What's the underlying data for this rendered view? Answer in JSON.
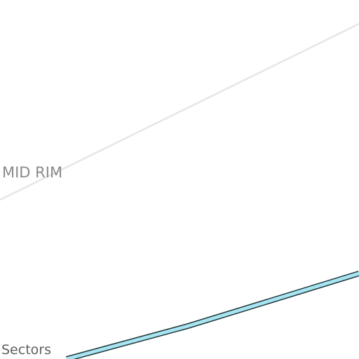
{
  "map": {
    "labels": {
      "district": "MID RIM",
      "road": "Sectors"
    },
    "colors": {
      "background": "#ffffff",
      "minor_road": "#e6e6e6",
      "highway_fill": "#a8e4f2",
      "highway_casing": "#1f3a3a",
      "district_label": "#8a8a8a",
      "road_label": "#5f5f5f"
    }
  }
}
